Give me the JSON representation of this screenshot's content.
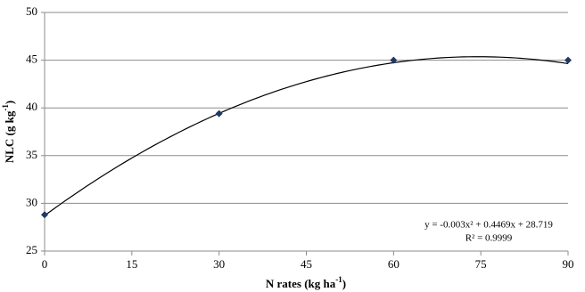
{
  "chart_data": {
    "type": "scatter",
    "x_label": [
      "N rates (kg ha",
      "-1",
      ")"
    ],
    "y_label": [
      "NLC (g kg",
      "-1",
      ")"
    ],
    "x": [
      0,
      30,
      60,
      90
    ],
    "values": [
      28.8,
      39.4,
      45.0,
      45.0
    ],
    "color": "#1f3864",
    "xlim": [
      0,
      90
    ],
    "xticks": [
      0,
      15,
      30,
      45,
      60,
      75,
      90
    ],
    "ylim": [
      25,
      50
    ],
    "yticks": [
      25,
      30,
      35,
      40,
      45,
      50
    ],
    "grid": true,
    "trendline": {
      "coefficients": [
        28.719,
        0.4469,
        -0.003
      ],
      "equation": "y = -0.003x² + 0.4469x + 28.719",
      "r_squared_label": "R² = 0.9999"
    }
  }
}
